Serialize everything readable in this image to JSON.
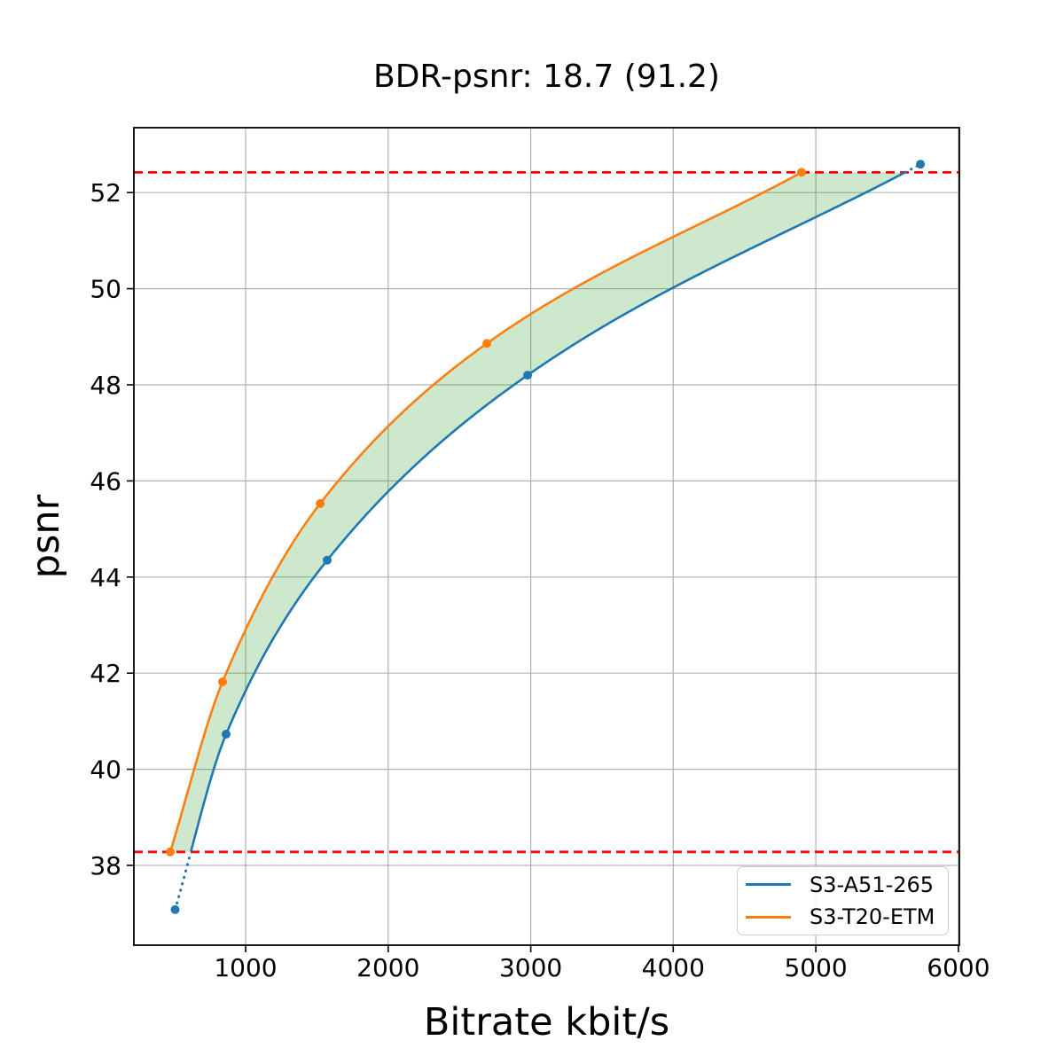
{
  "figure": {
    "title": "BDR-psnr: 18.7 (91.2)",
    "xlabel": "Bitrate kbit/s",
    "ylabel": "psnr"
  },
  "legend": {
    "items": [
      {
        "label": "S3-A51-265",
        "color": "#1f77b4"
      },
      {
        "label": "S3-T20-ETM",
        "color": "#ff7f0e"
      }
    ]
  },
  "chart_data": {
    "type": "line",
    "title": "BDR-psnr: 18.7 (91.2)",
    "xlabel": "Bitrate kbit/s",
    "ylabel": "psnr",
    "xlim": [
      216,
      6007
    ],
    "ylim": [
      36.34,
      53.35
    ],
    "x_ticks": [
      1000,
      2000,
      3000,
      4000,
      5000,
      6000
    ],
    "y_ticks": [
      38,
      40,
      42,
      44,
      46,
      48,
      50,
      52
    ],
    "grid": true,
    "grid_color": "#b0b0b0",
    "legend_position": "lower right",
    "series": [
      {
        "name": "S3-A51-265",
        "color": "#1f77b4",
        "marker": "o",
        "x": [
          505,
          863,
          1572,
          2978,
          5734
        ],
        "y": [
          37.08,
          40.73,
          44.35,
          48.2,
          52.59
        ]
      },
      {
        "name": "S3-T20-ETM",
        "color": "#ff7f0e",
        "marker": "o",
        "x": [
          471,
          838,
          1523,
          2692,
          4900
        ],
        "y": [
          38.28,
          41.82,
          45.53,
          48.86,
          52.42
        ]
      }
    ],
    "bd_overlap_lines": {
      "psnr_low": 38.28,
      "psnr_high": 52.42,
      "color": "#ff0000",
      "style": "dashed"
    },
    "shade_between_curves": {
      "color": "#2ca02c",
      "alpha": 0.24
    },
    "out_of_range_segment_style": "dotted"
  }
}
